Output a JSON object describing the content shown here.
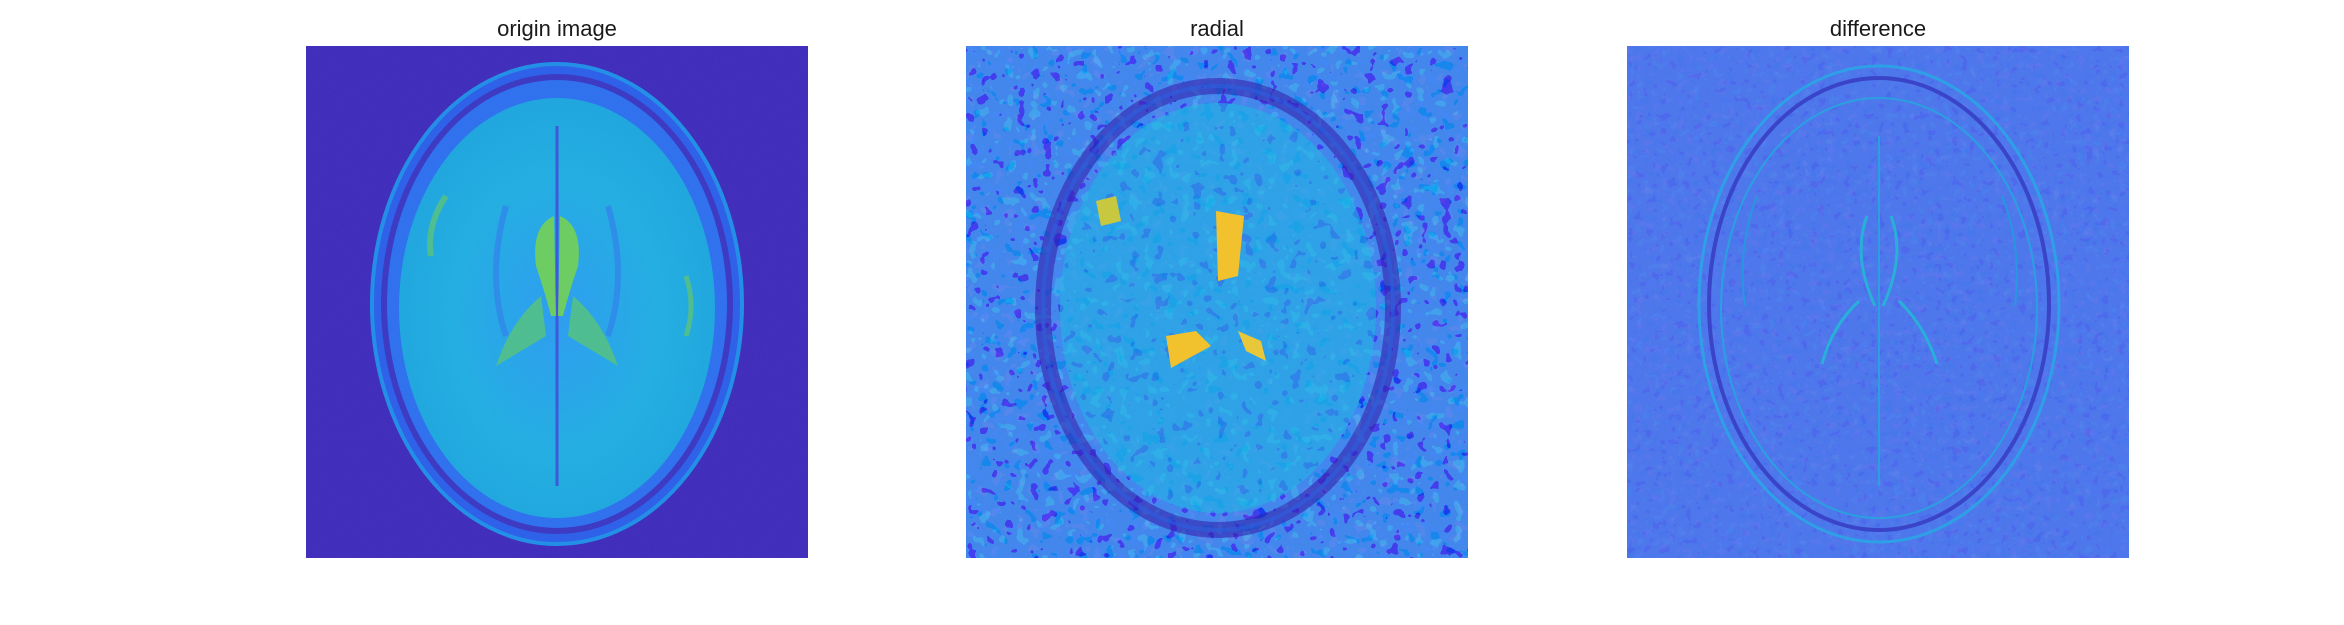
{
  "figure": {
    "panels": [
      {
        "title": "origin image",
        "colormap": "parula",
        "background_color": "#3e28b8"
      },
      {
        "title": "radial",
        "colormap": "parula",
        "background_color": "#2e7af0"
      },
      {
        "title": "difference",
        "colormap": "parula",
        "background_color": "#3056e8"
      }
    ],
    "colors": {
      "dark_blue": "#3b2bb5",
      "mid_blue": "#2d6df2",
      "cyan": "#17b8d9",
      "teal_green": "#3cc08c",
      "yellow": "#f2c12e"
    }
  }
}
